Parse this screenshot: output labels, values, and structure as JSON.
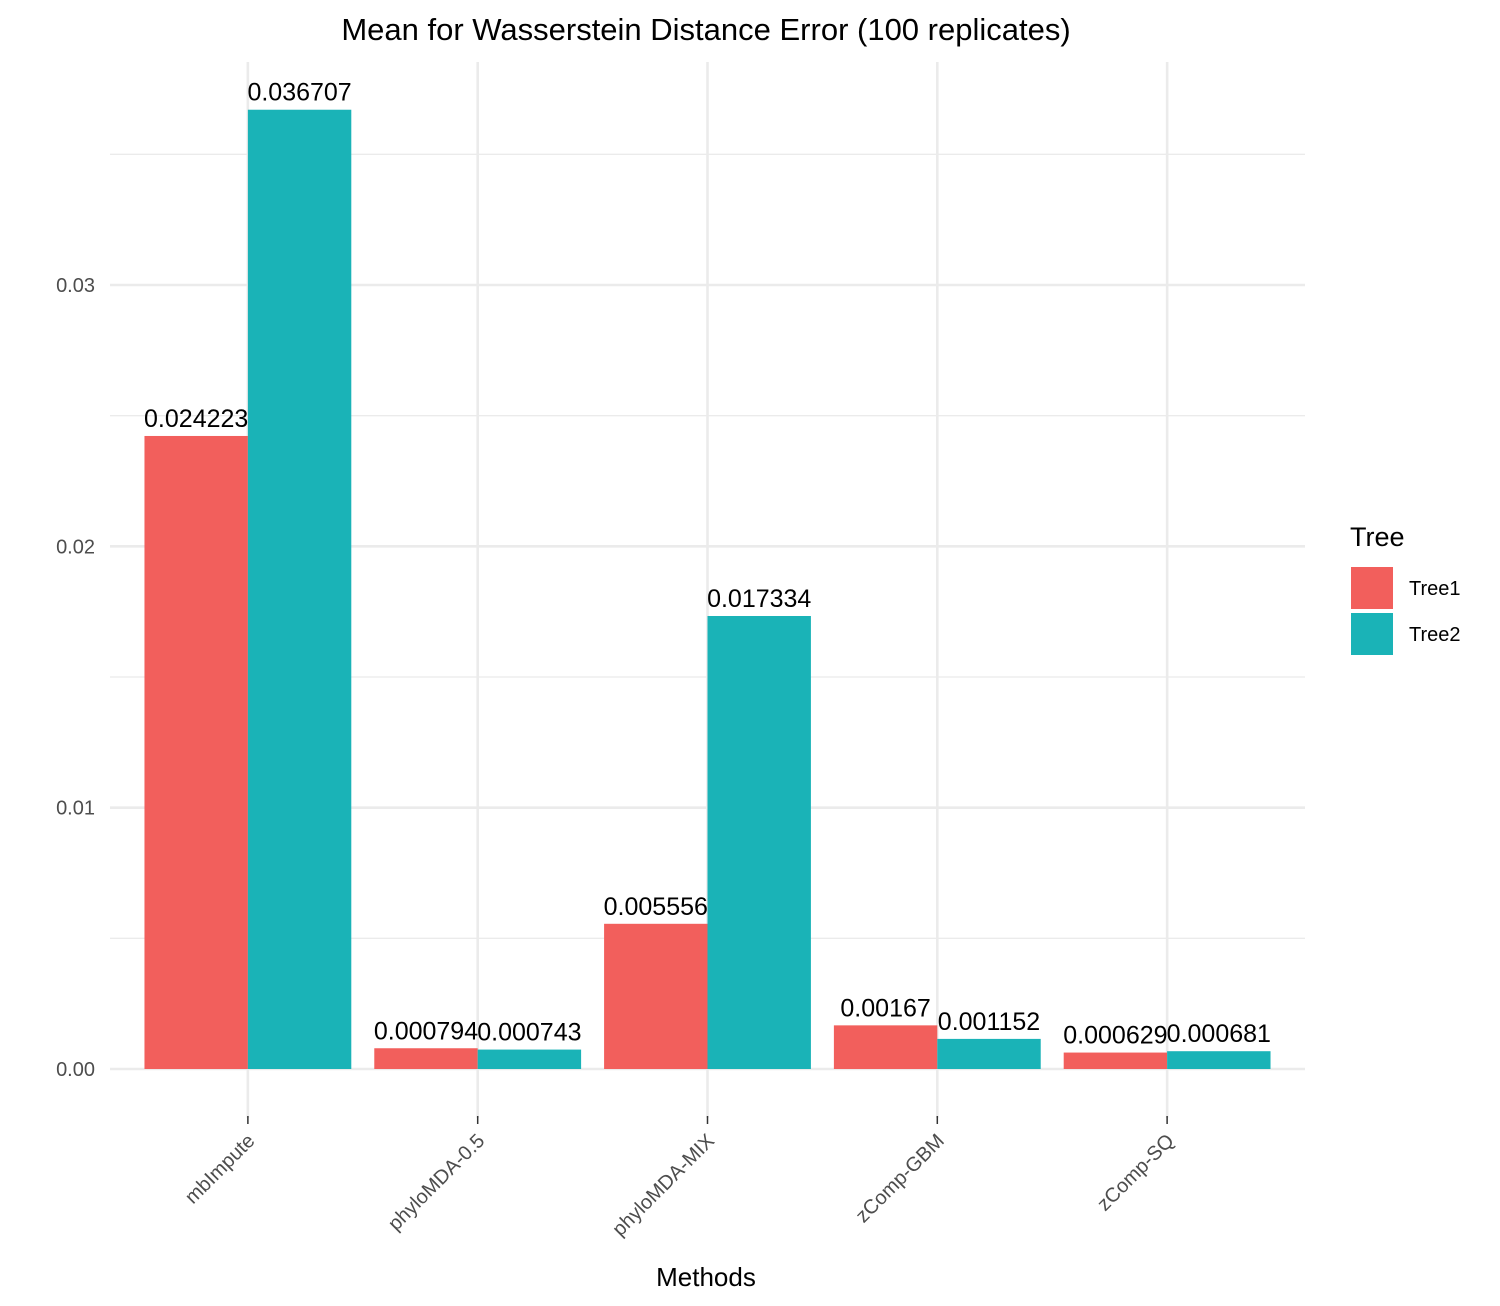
{
  "chart_data": {
    "type": "bar",
    "title": "Mean for Wasserstein Distance Error (100 replicates)",
    "xlabel": "Methods",
    "ylabel": "",
    "categories": [
      "mbImpute",
      "phyloMDA-0.5",
      "phyloMDA-MIX",
      "zComp-GBM",
      "zComp-SQ"
    ],
    "series": [
      {
        "name": "Tree1",
        "color": "#f25f5c",
        "values": [
          0.024223,
          0.000794,
          0.005556,
          0.00167,
          0.000629
        ],
        "labels": [
          "0.024223",
          "0.000794",
          "0.005556",
          "0.00167",
          "0.000629"
        ]
      },
      {
        "name": "Tree2",
        "color": "#1ab3b7",
        "values": [
          0.036707,
          0.000743,
          0.017334,
          0.001152,
          0.000681
        ],
        "labels": [
          "0.036707",
          "0.000743",
          "0.017334",
          "0.001152",
          "0.000681"
        ]
      }
    ],
    "yticks": [
      0.0,
      0.01,
      0.02,
      0.03
    ],
    "ytick_labels": [
      "0.00",
      "0.01",
      "0.02",
      "0.03"
    ],
    "ylim": [
      -0.00175,
      0.0385
    ],
    "grid": true,
    "legend": {
      "title": "Tree",
      "position": "right"
    }
  }
}
